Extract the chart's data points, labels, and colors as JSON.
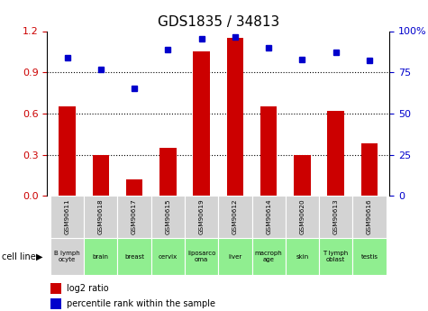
{
  "title": "GDS1835 / 34813",
  "samples": [
    "GSM90611",
    "GSM90618",
    "GSM90617",
    "GSM90615",
    "GSM90619",
    "GSM90612",
    "GSM90614",
    "GSM90620",
    "GSM90613",
    "GSM90616"
  ],
  "cell_lines": [
    "B lymph\nocyte",
    "brain",
    "breast",
    "cervix",
    "liposarco\noma",
    "liver",
    "macroph\nage",
    "skin",
    "T lymph\noblast",
    "testis"
  ],
  "cell_line_colors": [
    "#d3d3d3",
    "#90ee90",
    "#90ee90",
    "#90ee90",
    "#90ee90",
    "#90ee90",
    "#90ee90",
    "#90ee90",
    "#90ee90",
    "#90ee90"
  ],
  "log2_ratio": [
    0.65,
    0.3,
    0.12,
    0.35,
    1.05,
    1.15,
    0.65,
    0.3,
    0.62,
    0.38
  ],
  "percentile_rank": [
    0.84,
    0.77,
    0.65,
    0.89,
    0.955,
    0.965,
    0.9,
    0.83,
    0.87,
    0.82
  ],
  "bar_color": "#cc0000",
  "dot_color": "#0000cc",
  "left_ylim": [
    0,
    1.2
  ],
  "right_ylim": [
    0,
    1.0
  ],
  "left_yticks": [
    0,
    0.3,
    0.6,
    0.9,
    1.2
  ],
  "right_yticks": [
    0.0,
    0.25,
    0.5,
    0.75,
    1.0
  ],
  "right_yticklabels": [
    "0",
    "25",
    "50",
    "75",
    "100%"
  ],
  "dotted_lines": [
    0.3,
    0.6,
    0.9
  ],
  "background_color": "#ffffff",
  "sample_bg_color": "#d3d3d3",
  "cell_line_header": "cell line"
}
